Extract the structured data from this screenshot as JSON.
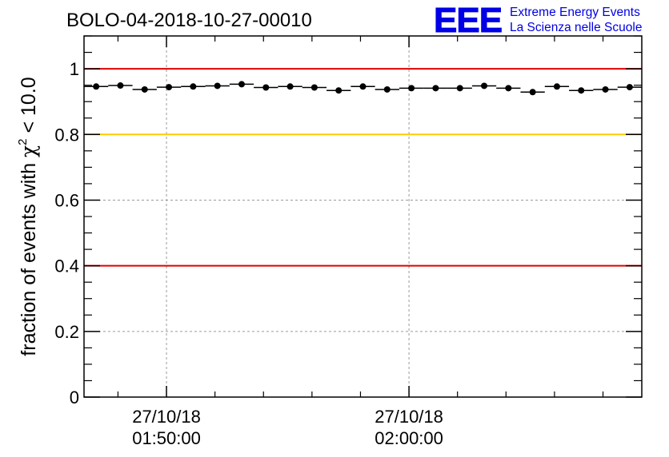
{
  "chart_data": {
    "type": "scatter",
    "title": "BOLO-04-2018-10-27-00010",
    "ylabel_prefix": "fraction of events with ",
    "ylabel_symbol": "χ",
    "ylabel_superscript": "2",
    "ylabel_suffix": " < 10.0",
    "ylim": [
      0,
      1.1
    ],
    "yticks": [
      0,
      0.2,
      0.4,
      0.6,
      0.8,
      1
    ],
    "ytick_labels": [
      "0",
      "0.2",
      "0.4",
      "0.6",
      "0.8",
      "1"
    ],
    "xlim": [
      0,
      23
    ],
    "xtick_major": [
      {
        "x": 3.4,
        "date": "27/10/18",
        "time": "01:50:00"
      },
      {
        "x": 13.4,
        "date": "27/10/18",
        "time": "02:00:00"
      }
    ],
    "grid": true,
    "reference_lines": [
      {
        "y": 1.0,
        "color": "#e00000"
      },
      {
        "y": 0.8,
        "color": "#ffcc00"
      },
      {
        "y": 0.4,
        "color": "#e00000"
      }
    ],
    "series": [
      {
        "x": [
          0.5,
          1.5,
          2.5,
          3.5,
          4.5,
          5.5,
          6.5,
          7.5,
          8.5,
          9.5,
          10.5,
          11.5,
          12.5,
          13.5,
          14.5,
          15.5,
          16.5,
          17.5,
          18.5,
          19.5,
          20.5,
          21.5,
          22.5
        ],
        "y": [
          0.946,
          0.949,
          0.937,
          0.944,
          0.946,
          0.948,
          0.953,
          0.943,
          0.946,
          0.943,
          0.934,
          0.946,
          0.937,
          0.941,
          0.941,
          0.941,
          0.948,
          0.941,
          0.929,
          0.946,
          0.934,
          0.937,
          0.944
        ],
        "color": "#000000"
      }
    ]
  },
  "logo": {
    "letters": "EEE",
    "line1": "Extreme Energy Events",
    "line2": "La Scienza nelle Scuole",
    "color": "#0000e6"
  }
}
